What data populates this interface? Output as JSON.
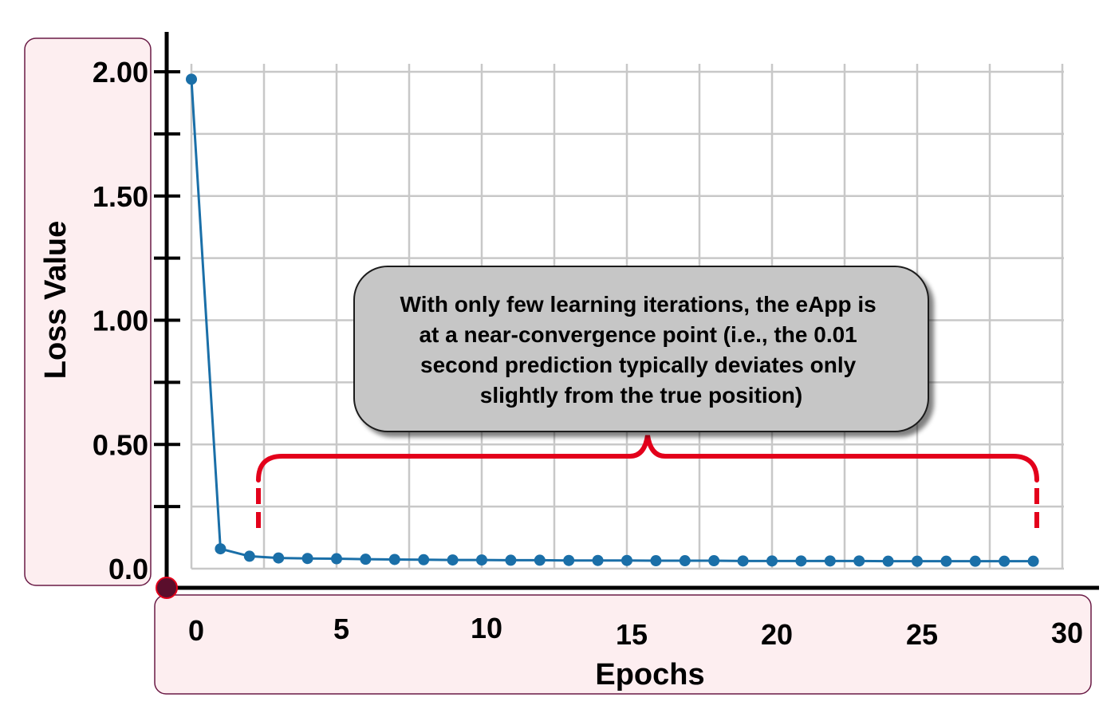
{
  "chart_data": {
    "type": "line",
    "title": "",
    "xlabel": "Epochs",
    "ylabel": "Loss Value",
    "xlim": [
      0,
      30
    ],
    "ylim": [
      0,
      2
    ],
    "x_ticks": [
      0,
      5,
      10,
      15,
      20,
      25,
      30
    ],
    "x_tick_labels": [
      "0",
      "5",
      "10",
      "15",
      "20",
      "25",
      "30"
    ],
    "y_ticks": [
      0,
      0.5,
      1,
      1.5,
      2
    ],
    "y_tick_labels": [
      "0.0",
      "0.50",
      "1.00",
      "1.50",
      "2.00"
    ],
    "grid": true,
    "series": [
      {
        "x": [
          0,
          1,
          2,
          3,
          4,
          5,
          6,
          7,
          8,
          9,
          10,
          11,
          12,
          13,
          14,
          15,
          16,
          17,
          18,
          19,
          20,
          21,
          22,
          23,
          24,
          25,
          26,
          27,
          28,
          29
        ],
        "values": [
          1.97,
          0.08,
          0.05,
          0.043,
          0.041,
          0.04,
          0.038,
          0.037,
          0.036,
          0.035,
          0.035,
          0.034,
          0.034,
          0.033,
          0.033,
          0.033,
          0.032,
          0.032,
          0.032,
          0.031,
          0.031,
          0.031,
          0.031,
          0.031,
          0.03,
          0.03,
          0.03,
          0.03,
          0.03,
          0.03
        ],
        "color": "#1a6fa8"
      }
    ],
    "annotation": {
      "text": "With only few learning iterations, the eApp is at a near-convergence point (i.e., the 0.01 second prediction typically deviates only slightly from the true position)",
      "lines": [
        "With only few learning iterations, the eApp is",
        "at a near-convergence point (i.e., the 0.01",
        "second prediction typically deviates only",
        "slightly from the true position)"
      ],
      "bracket_x_range": [
        2,
        29
      ],
      "bracket_color": "#e3001b"
    }
  }
}
